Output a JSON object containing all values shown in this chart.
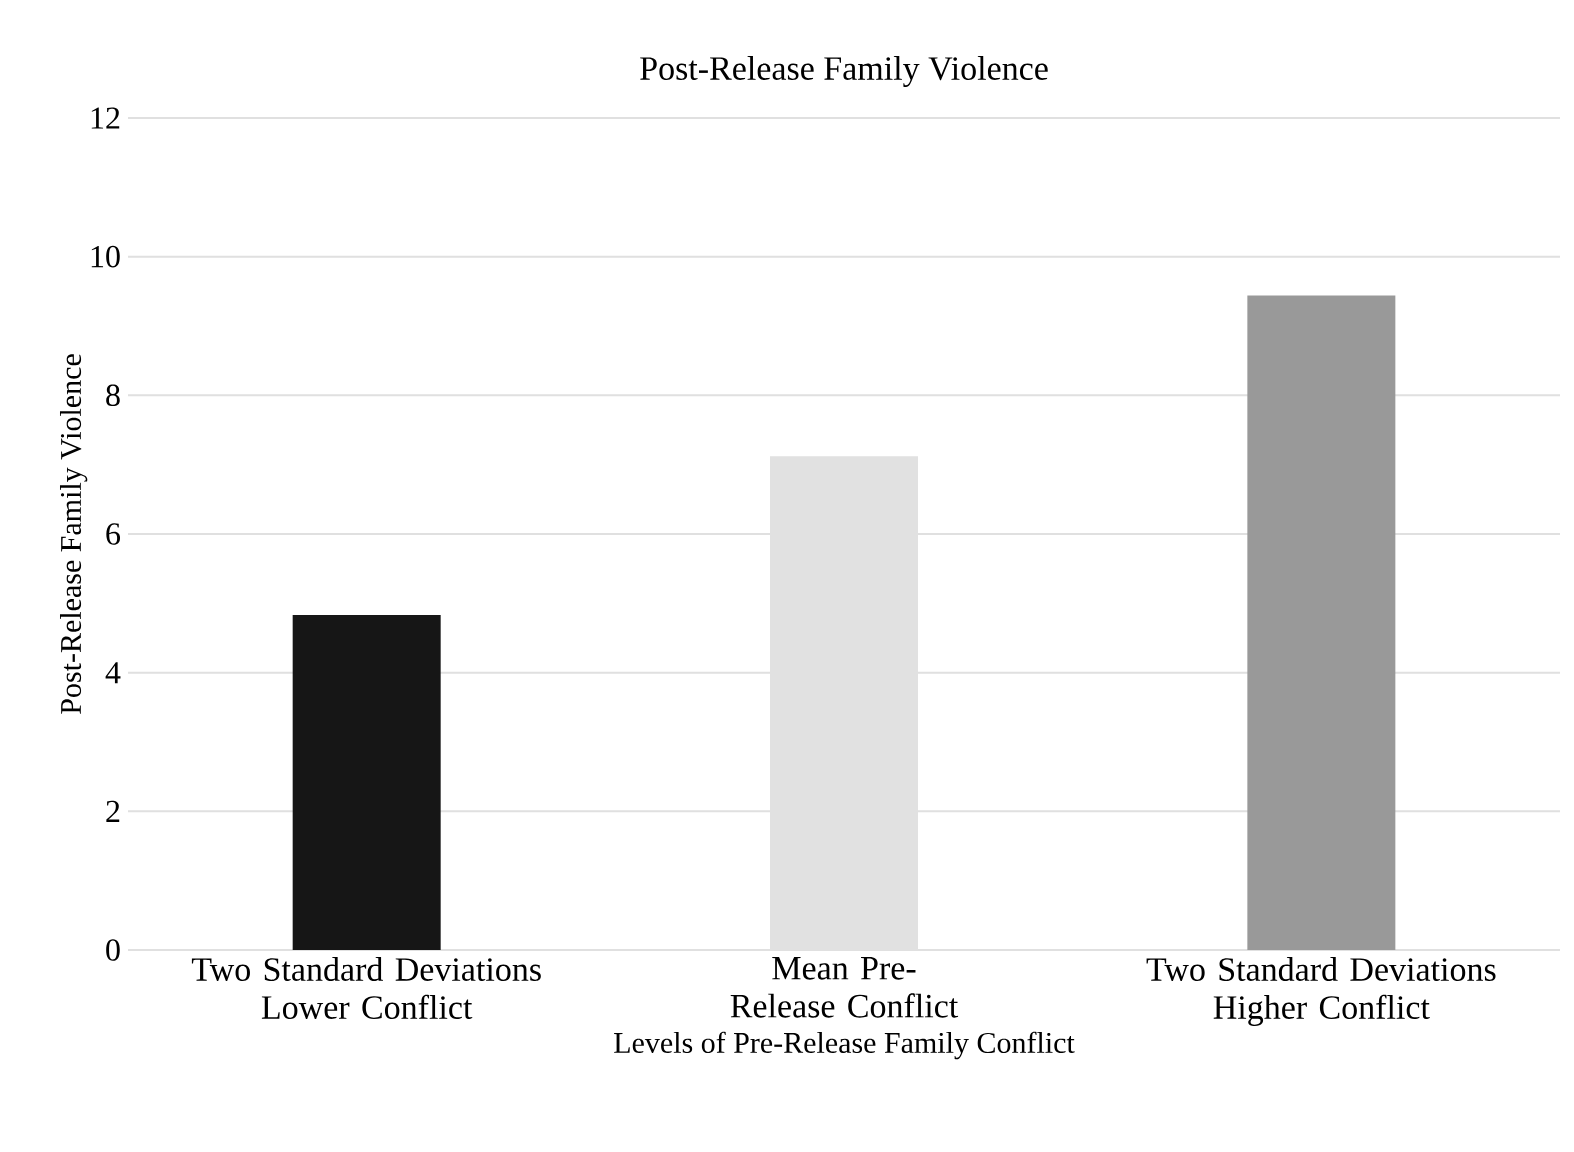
{
  "chart_data": {
    "type": "bar",
    "title": "Post-Release Family Violence",
    "xlabel": "Levels of Pre-Release Family Conflict",
    "ylabel": "Post-Release Family Violence",
    "categories": [
      "Two Standard Deviations Lower Conflict",
      "Mean Pre-Release Conflict",
      "Two Standard Deviations Higher Conflict"
    ],
    "values": [
      4.83,
      7.12,
      9.44
    ],
    "colors": [
      "#161616",
      "#e1e1e1",
      "#999999"
    ],
    "ylim": [
      0,
      12
    ],
    "yticks": [
      0,
      2,
      4,
      6,
      8,
      10,
      12
    ],
    "grid": "y"
  }
}
